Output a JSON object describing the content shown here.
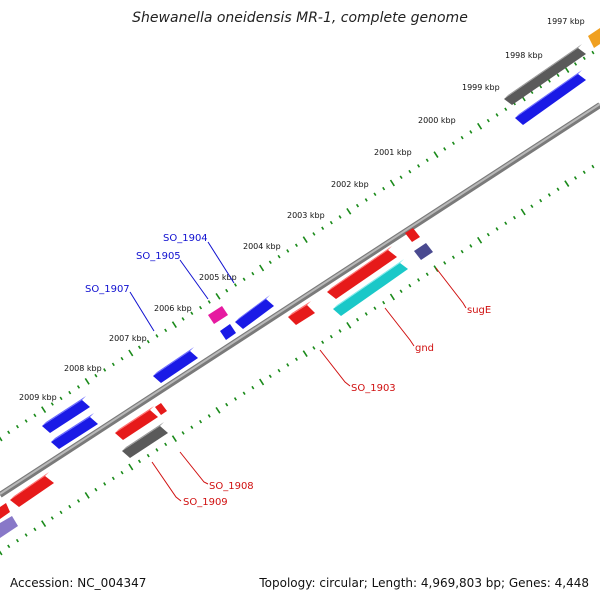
{
  "title": "Shewanella oneidensis MR-1, complete genome",
  "footer": {
    "accession": "Accession: NC_004347",
    "topology": "Topology: circular; Length: 4,969,803 bp; Genes: 4,448"
  },
  "kbp_labels": [
    "1997 kbp",
    "1998 kbp",
    "1999 kbp",
    "2000 kbp",
    "2001 kbp",
    "2002 kbp",
    "2003 kbp",
    "2004 kbp",
    "2005 kbp",
    "2006 kbp",
    "2007 kbp",
    "2008 kbp",
    "2009 kbp"
  ],
  "gene_labels": {
    "blue": [
      "SO_1904",
      "SO_1905",
      "SO_1907"
    ],
    "red": [
      "sugE",
      "gnd",
      "SO_1903",
      "SO_1908",
      "SO_1909"
    ]
  },
  "colors": {
    "backbone": "#888888",
    "ticks": "#1a8a1a",
    "blue_label": "#1010d0",
    "red_label": "#d01010",
    "gene_blue": "#1a1ae6",
    "gene_red": "#e61a1a",
    "gene_gray": "#666666",
    "gene_cyan": "#1ac8c8",
    "gene_magenta": "#e61aa0",
    "gene_navy": "#4a4a90",
    "gene_orange": "#f0a020",
    "gene_lavender": "#8878c8"
  }
}
